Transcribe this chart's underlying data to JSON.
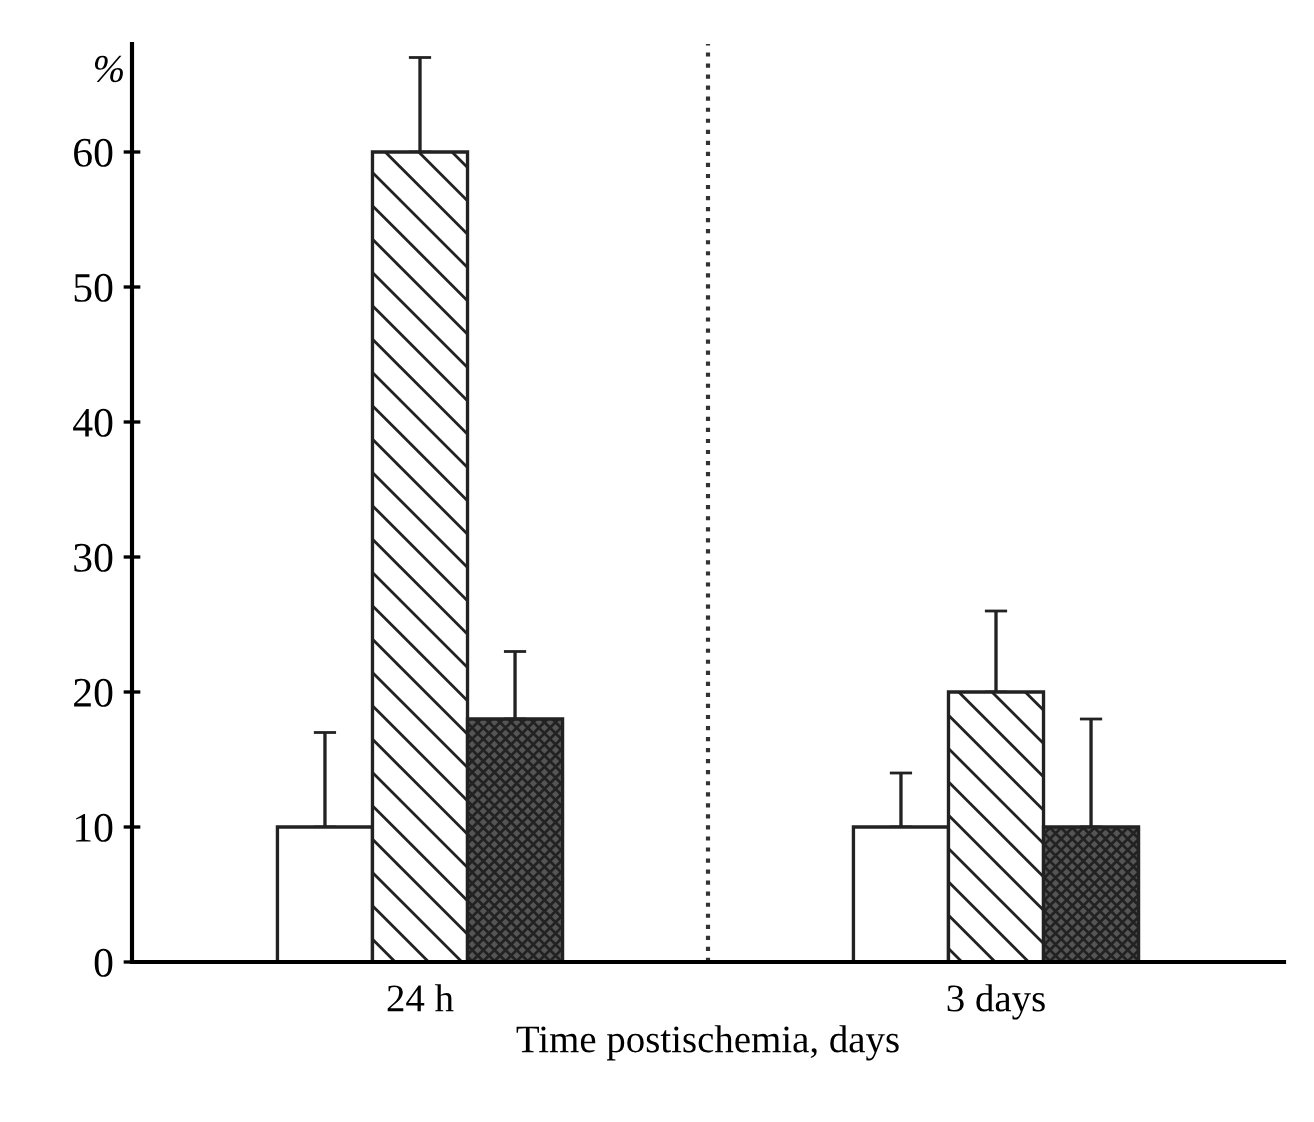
{
  "chart_data": {
    "type": "bar",
    "xlabel": "Time postischemia, days",
    "ylabel": "%",
    "categories": [
      "24 h",
      "3 days"
    ],
    "series": [
      {
        "color": "#ffffff",
        "values": [
          10,
          10
        ],
        "errors": [
          [
            10,
            17
          ],
          [
            10,
            14
          ]
        ]
      },
      {
        "color": "#222222",
        "values": [
          60,
          20
        ],
        "errors": [
          [
            60,
            67
          ],
          [
            20,
            26
          ]
        ]
      },
      {
        "color": "#222222",
        "values": [
          18,
          10
        ],
        "errors": [
          [
            18,
            23
          ],
          [
            10,
            18
          ]
        ]
      }
    ],
    "ylim": [
      0,
      68
    ],
    "yticks": [
      0,
      10,
      20,
      30,
      40,
      50,
      60
    ],
    "grid": false,
    "legend": false
  }
}
